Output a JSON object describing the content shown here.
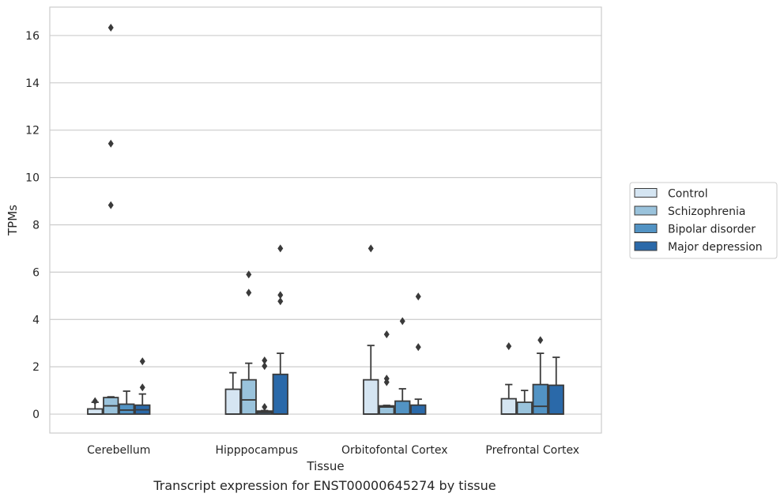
{
  "caption": "Transcript expression for ENST00000645274 by tissue",
  "chart_data": {
    "type": "box",
    "title": "",
    "xlabel": "Tissue",
    "ylabel": "TPMs",
    "ylim": [
      -0.8,
      17.2
    ],
    "yticks": [
      0,
      2,
      4,
      6,
      8,
      10,
      12,
      14,
      16
    ],
    "grid": "horizontal",
    "legend_position": "right",
    "categories": [
      "Cerebellum",
      "Hipppocampus",
      "Orbitofontal Cortex",
      "Prefrontal Cortex"
    ],
    "series": [
      {
        "name": "Control",
        "color": "#d5e5f2",
        "boxes": [
          {
            "q1": 0.0,
            "median": 0.0,
            "q3": 0.22,
            "whisker_low": 0.0,
            "whisker_high": 0.5,
            "outliers": [
              0.55
            ]
          },
          {
            "q1": 0.0,
            "median": 0.0,
            "q3": 1.05,
            "whisker_low": 0.0,
            "whisker_high": 1.75,
            "outliers": []
          },
          {
            "q1": 0.0,
            "median": 0.0,
            "q3": 1.45,
            "whisker_low": 0.0,
            "whisker_high": 2.9,
            "outliers": [
              7.0
            ]
          },
          {
            "q1": 0.0,
            "median": 0.0,
            "q3": 0.65,
            "whisker_low": 0.0,
            "whisker_high": 1.25,
            "outliers": [
              2.87
            ]
          }
        ]
      },
      {
        "name": "Schizophrenia",
        "color": "#9ac3dc",
        "boxes": [
          {
            "q1": 0.0,
            "median": 0.35,
            "q3": 0.7,
            "whisker_low": 0.0,
            "whisker_high": 0.73,
            "outliers": [
              8.83,
              11.43,
              16.33
            ]
          },
          {
            "q1": 0.0,
            "median": 0.6,
            "q3": 1.45,
            "whisker_low": 0.0,
            "whisker_high": 2.15,
            "outliers": [
              5.13,
              5.9
            ]
          },
          {
            "q1": 0.0,
            "median": 0.3,
            "q3": 0.35,
            "whisker_low": 0.0,
            "whisker_high": 0.37,
            "outliers": [
              1.35,
              1.5,
              3.37
            ]
          },
          {
            "q1": 0.0,
            "median": 0.0,
            "q3": 0.5,
            "whisker_low": 0.0,
            "whisker_high": 1.0,
            "outliers": []
          }
        ]
      },
      {
        "name": "Bipolar disorder",
        "color": "#5293c4",
        "boxes": [
          {
            "q1": 0.0,
            "median": 0.17,
            "q3": 0.42,
            "whisker_low": 0.0,
            "whisker_high": 0.97,
            "outliers": []
          },
          {
            "q1": 0.0,
            "median": 0.07,
            "q3": 0.13,
            "whisker_low": 0.0,
            "whisker_high": 0.15,
            "outliers": [
              0.3,
              2.03,
              2.27
            ]
          },
          {
            "q1": 0.0,
            "median": 0.0,
            "q3": 0.55,
            "whisker_low": 0.0,
            "whisker_high": 1.07,
            "outliers": [
              3.93
            ]
          },
          {
            "q1": 0.0,
            "median": 0.33,
            "q3": 1.25,
            "whisker_low": 0.0,
            "whisker_high": 2.57,
            "outliers": [
              3.13
            ]
          }
        ]
      },
      {
        "name": "Major depression",
        "color": "#2a69a9",
        "boxes": [
          {
            "q1": 0.0,
            "median": 0.18,
            "q3": 0.38,
            "whisker_low": 0.0,
            "whisker_high": 0.85,
            "outliers": [
              1.13,
              2.23
            ]
          },
          {
            "q1": 0.0,
            "median": 0.0,
            "q3": 1.68,
            "whisker_low": 0.0,
            "whisker_high": 2.57,
            "outliers": [
              4.77,
              5.03,
              7.0
            ]
          },
          {
            "q1": 0.0,
            "median": 0.0,
            "q3": 0.38,
            "whisker_low": 0.0,
            "whisker_high": 0.63,
            "outliers": [
              2.83,
              4.97
            ]
          },
          {
            "q1": 0.0,
            "median": 0.0,
            "q3": 1.22,
            "whisker_low": 0.0,
            "whisker_high": 2.4,
            "outliers": []
          }
        ]
      }
    ]
  }
}
